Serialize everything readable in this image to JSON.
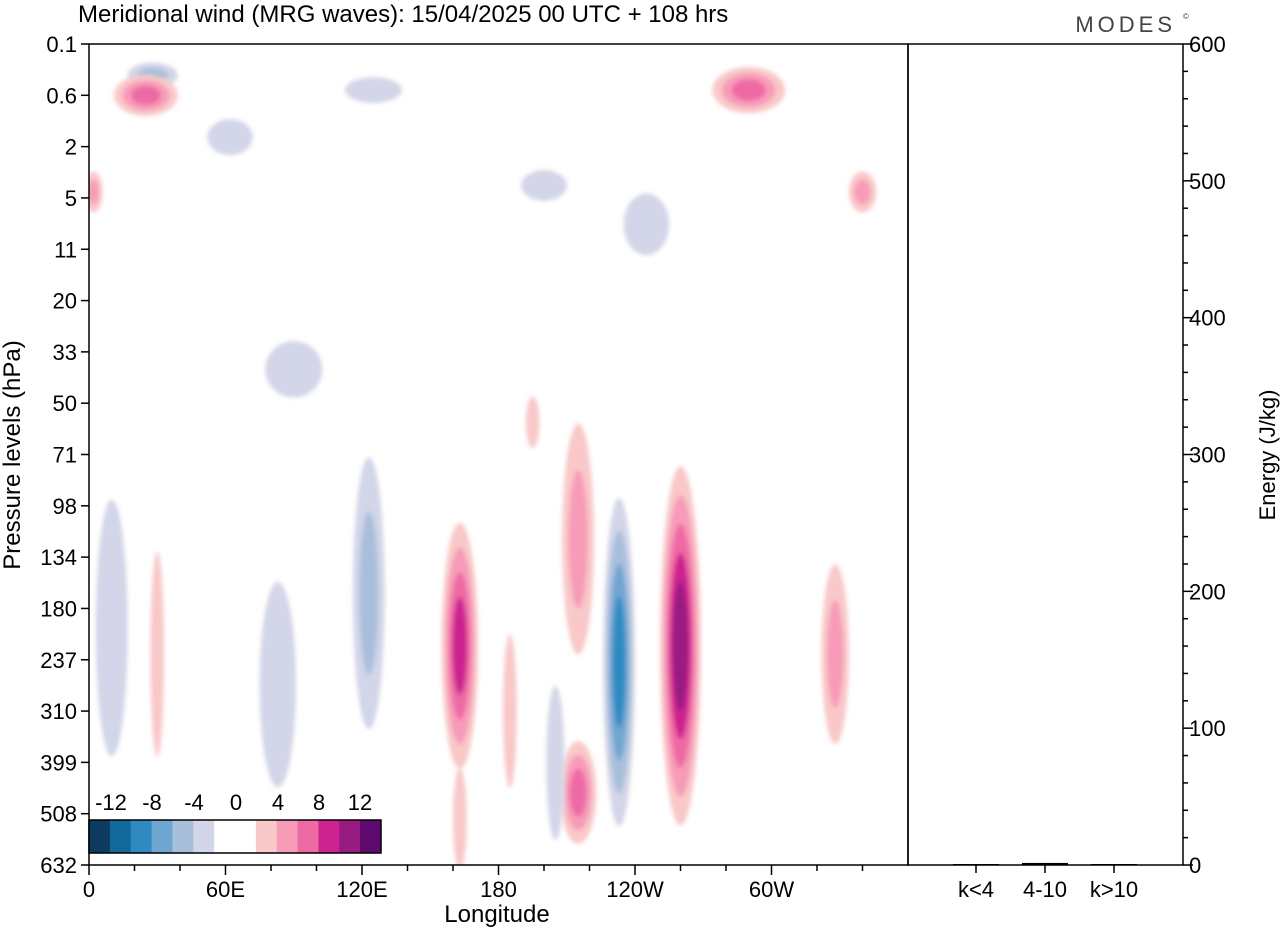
{
  "title": "Meridional wind (MRG waves):  15/04/2025  00 UTC  + 108 hrs",
  "brand": "MODES",
  "brand_mark": "©",
  "chart_data": [
    {
      "type": "heatmap",
      "title": "Meridional wind (MRG waves):  15/04/2025  00 UTC  + 108 hrs",
      "xlabel": "Longitude",
      "ylabel": "Pressure levels (hPa)",
      "x_ticks": [
        "0",
        "60E",
        "120E",
        "180",
        "120W",
        "60W"
      ],
      "y_ticks": [
        "0.1",
        "0.6",
        "2",
        "5",
        "11",
        "20",
        "33",
        "50",
        "71",
        "98",
        "134",
        "180",
        "237",
        "310",
        "399",
        "508",
        "632"
      ],
      "colorbar": {
        "labels": [
          "-12",
          "-8",
          "-4",
          "0",
          "4",
          "8",
          "12"
        ],
        "colors": [
          "#0d3b5e",
          "#12689b",
          "#2f8ac2",
          "#6fa6d1",
          "#a8bfdc",
          "#d3d5e8",
          "#ffffff",
          "#ffffff",
          "#f9c8c8",
          "#f79bb8",
          "#ee6aa4",
          "#cc2390",
          "#981b82",
          "#5e0a6e"
        ]
      },
      "features": [
        {
          "sign": "negative",
          "x": 28,
          "y": 0.3,
          "w": 22,
          "h": 0.5,
          "level": 2
        },
        {
          "sign": "negative",
          "x": 125,
          "y": 0.5,
          "w": 25,
          "h": 0.5,
          "level": 1
        },
        {
          "sign": "negative",
          "x": 62,
          "y": 1.6,
          "w": 20,
          "h": 0.7,
          "level": 1
        },
        {
          "sign": "negative",
          "x": 200,
          "y": 4.0,
          "w": 20,
          "h": 0.6,
          "level": 1
        },
        {
          "sign": "negative",
          "x": 245,
          "y": 7.5,
          "w": 20,
          "h": 1.2,
          "level": 1
        },
        {
          "sign": "positive",
          "x": 25,
          "y": 0.6,
          "w": 28,
          "h": 0.8,
          "level": 3
        },
        {
          "sign": "positive",
          "x": 290,
          "y": 0.5,
          "w": 32,
          "h": 0.9,
          "level": 3
        },
        {
          "sign": "positive",
          "x": 340,
          "y": 4.5,
          "w": 12,
          "h": 0.8,
          "level": 2
        },
        {
          "sign": "positive",
          "x": 2,
          "y": 4.5,
          "w": 8,
          "h": 0.8,
          "level": 2
        },
        {
          "sign": "negative",
          "x": 90,
          "y": 38,
          "w": 25,
          "h": 1.1,
          "level": 1
        },
        {
          "sign": "positive",
          "x": 195,
          "y": 57,
          "w": 6,
          "h": 1.0,
          "level": 1
        },
        {
          "sign": "negative",
          "x": 123,
          "y": 165,
          "w": 14,
          "h": 5.3,
          "level": 2
        },
        {
          "sign": "positive",
          "x": 163,
          "y": 220,
          "w": 16,
          "h": 4.8,
          "level": 4
        },
        {
          "sign": "positive",
          "x": 215,
          "y": 120,
          "w": 14,
          "h": 4.5,
          "level": 2
        },
        {
          "sign": "negative",
          "x": 233,
          "y": 240,
          "w": 14,
          "h": 6.4,
          "level": 4
        },
        {
          "sign": "positive",
          "x": 260,
          "y": 220,
          "w": 18,
          "h": 7.0,
          "level": 5
        },
        {
          "sign": "positive",
          "x": 215,
          "y": 460,
          "w": 16,
          "h": 2.0,
          "level": 3
        },
        {
          "sign": "negative",
          "x": 205,
          "y": 400,
          "w": 8,
          "h": 3.0,
          "level": 1
        },
        {
          "sign": "positive",
          "x": 328,
          "y": 230,
          "w": 12,
          "h": 3.5,
          "level": 2
        },
        {
          "sign": "negative",
          "x": 10,
          "y": 200,
          "w": 14,
          "h": 5.0,
          "level": 1
        },
        {
          "sign": "negative",
          "x": 83,
          "y": 270,
          "w": 16,
          "h": 4.0,
          "level": 1
        },
        {
          "sign": "positive",
          "x": 30,
          "y": 230,
          "w": 6,
          "h": 4.0,
          "level": 1
        },
        {
          "sign": "positive",
          "x": 163,
          "y": 520,
          "w": 6,
          "h": 2.0,
          "level": 1
        },
        {
          "sign": "positive",
          "x": 185,
          "y": 310,
          "w": 6,
          "h": 3.0,
          "level": 1
        }
      ]
    },
    {
      "type": "bar",
      "ylabel": "Energy (J/kg)",
      "ylim": [
        0,
        600
      ],
      "y_ticks": [
        "0",
        "100",
        "200",
        "300",
        "400",
        "500",
        "600"
      ],
      "categories": [
        "k<4",
        "4-10",
        "k>10"
      ],
      "values": [
        0.4,
        1.5,
        0.3
      ]
    }
  ]
}
